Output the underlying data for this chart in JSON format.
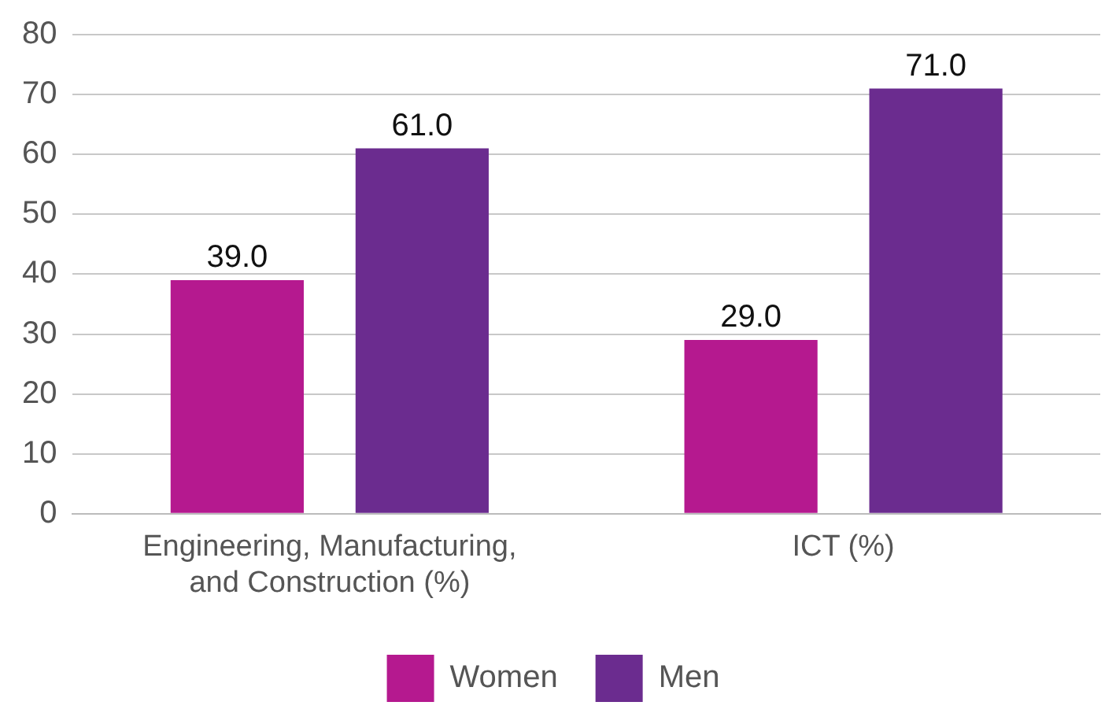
{
  "chart_data": {
    "type": "bar",
    "categories": [
      "Engineering, Manufacturing, and Construction (%)",
      "ICT (%)"
    ],
    "series": [
      {
        "name": "Women",
        "color": "#b5198f",
        "values": [
          39,
          29
        ],
        "value_labels": [
          "39.0",
          "29.0"
        ]
      },
      {
        "name": "Men",
        "color": "#6b2c8f",
        "values": [
          61,
          71
        ],
        "value_labels": [
          "61.0",
          "71.0"
        ]
      }
    ],
    "ylim": [
      0,
      80
    ],
    "yticks": [
      0,
      10,
      20,
      30,
      40,
      50,
      60,
      70,
      80
    ],
    "grid": "y",
    "legend": "bottom"
  }
}
